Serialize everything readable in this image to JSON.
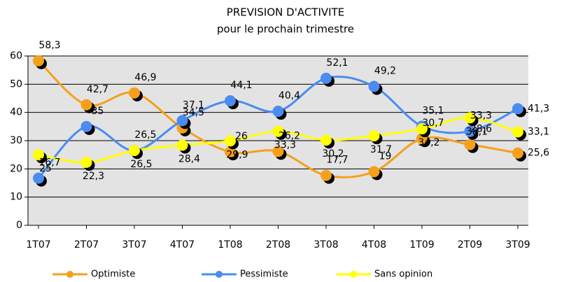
{
  "chart_data": {
    "type": "line",
    "title": "PREVISION D'ACTIVITE",
    "subtitle": "pour le prochain trimestre",
    "categories": [
      "1T07",
      "2T07",
      "3T07",
      "4T07",
      "1T08",
      "2T08",
      "3T08",
      "4T08",
      "1T09",
      "2T09",
      "3T09"
    ],
    "series": [
      {
        "name": "Optimiste",
        "color": "#f5a01a",
        "values": [
          58.3,
          42.7,
          46.9,
          34.5,
          26,
          26.2,
          17.7,
          19,
          30.7,
          28.6,
          25.6
        ],
        "value_labels": [
          "58,3",
          "42,7",
          "46,9",
          "34,5",
          "26",
          "26,2",
          "17,7",
          "19",
          "30,7",
          "28,6",
          "25,6"
        ]
      },
      {
        "name": "Pessimiste",
        "color": "#4a8cf0",
        "values": [
          16.7,
          35,
          26.5,
          37.1,
          44.1,
          40.4,
          52.1,
          49.2,
          35.1,
          33.3,
          41.3
        ],
        "value_labels": [
          "16,7",
          "35",
          "26,5",
          "37,1",
          "44,1",
          "40,4",
          "52,1",
          "49,2",
          "35,1",
          "33,3",
          "41,3"
        ]
      },
      {
        "name": "Sans opinion",
        "color": "#ffff00",
        "values": [
          25,
          22.3,
          26.5,
          28.4,
          29.9,
          33.3,
          30.2,
          31.7,
          34.2,
          38.1,
          33.1
        ],
        "value_labels": [
          "25",
          "22,3",
          "26,5",
          "28,4",
          "29,9",
          "33,3",
          "30,2",
          "31,7",
          "34,2",
          "38,1",
          "33,1"
        ]
      }
    ],
    "ylim": [
      0,
      60
    ],
    "yticks": [
      0,
      10,
      20,
      30,
      40,
      50,
      60
    ],
    "grid": true
  }
}
